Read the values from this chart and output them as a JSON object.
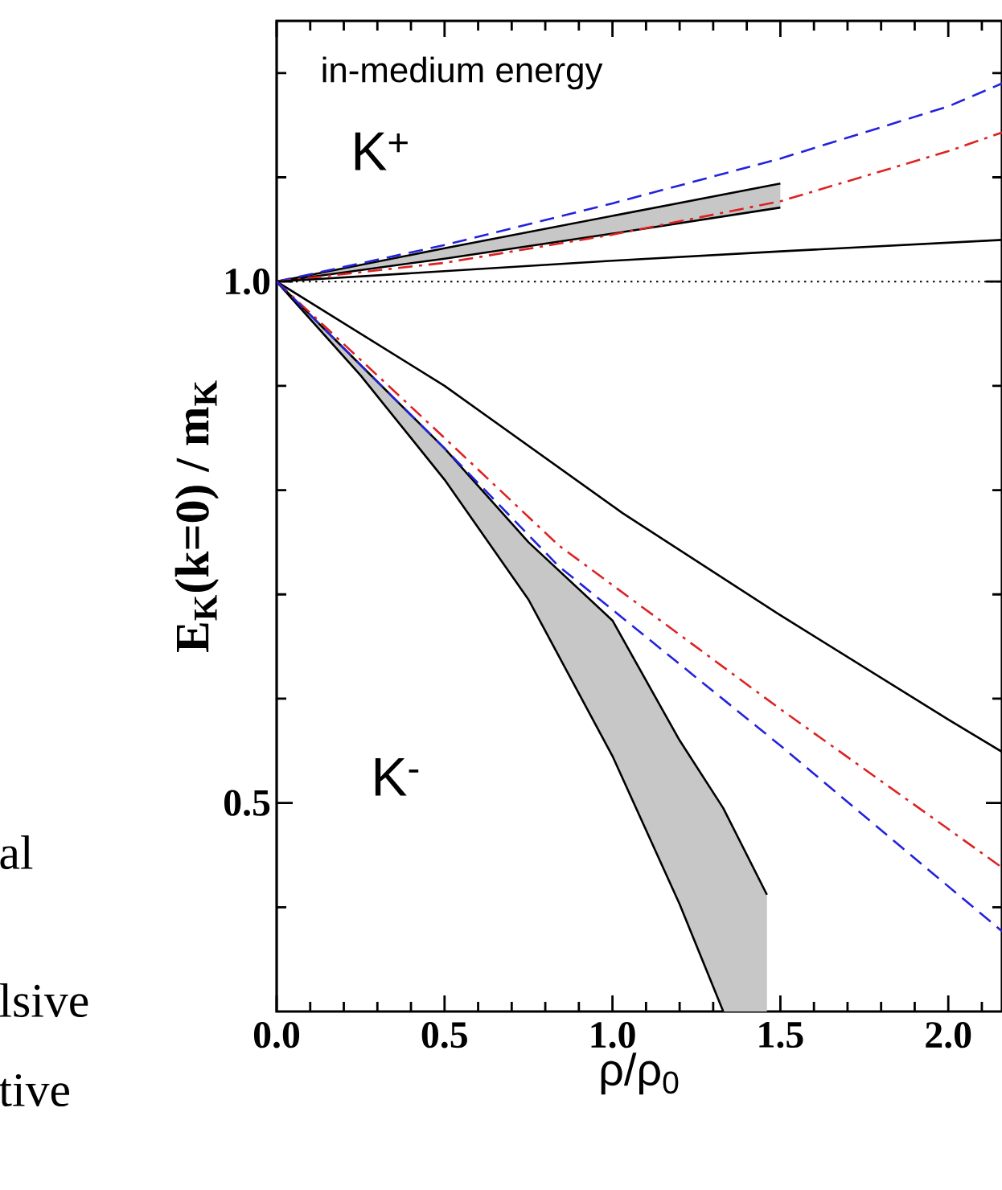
{
  "chart_data": {
    "type": "line",
    "xlabel": "ρ/ρ$_{0}$",
    "ylabel": "E$_{K}$(k=0) / m$_{K}$",
    "annotations": [
      "in-medium energy",
      "K$^{+}$",
      "K$^{-}$",
      "al",
      "lsive",
      "tive"
    ],
    "xlim": [
      0,
      2.16
    ],
    "ylim": [
      0.3,
      1.25
    ],
    "xticks": [
      {
        "value": 0.0,
        "label": "0.0"
      },
      {
        "value": 0.1,
        "label": null
      },
      {
        "value": 0.2,
        "label": null
      },
      {
        "value": 0.3,
        "label": null
      },
      {
        "value": 0.4,
        "label": null
      },
      {
        "value": 0.5,
        "label": "0.5"
      },
      {
        "value": 0.6,
        "label": null
      },
      {
        "value": 0.7,
        "label": null
      },
      {
        "value": 0.8,
        "label": null
      },
      {
        "value": 0.9,
        "label": null
      },
      {
        "value": 1.0,
        "label": "1.0"
      },
      {
        "value": 1.1,
        "label": null
      },
      {
        "value": 1.2,
        "label": null
      },
      {
        "value": 1.3,
        "label": null
      },
      {
        "value": 1.4,
        "label": null
      },
      {
        "value": 1.5,
        "label": "1.5"
      },
      {
        "value": 1.6,
        "label": null
      },
      {
        "value": 1.7,
        "label": null
      },
      {
        "value": 1.8,
        "label": null
      },
      {
        "value": 1.9,
        "label": null
      },
      {
        "value": 2.0,
        "label": "2.0"
      },
      {
        "value": 2.1,
        "label": null
      }
    ],
    "yticks": [
      {
        "value": 0.4,
        "label": null
      },
      0.5,
      {
        "value": 0.6,
        "label": null
      },
      {
        "value": 0.7,
        "label": null
      },
      {
        "value": 0.8,
        "label": null
      },
      {
        "value": 0.9,
        "label": null
      },
      {
        "value": 1.0,
        "label": "1.0"
      },
      {
        "value": 1.1,
        "label": null
      },
      {
        "value": 1.2,
        "label": null
      }
    ],
    "ref_lines": [
      {
        "axis": "y",
        "value": 1.0,
        "color": "#000000",
        "line_style": "dotted"
      }
    ],
    "series": [
      {
        "color": "#000000",
        "line_style": "solid",
        "x": [
          0,
          0.5,
          1.0,
          1.5
        ],
        "values": [
          1.0,
          1.032,
          1.063,
          1.094
        ],
        "lower": [
          1.0,
          1.022,
          1.046,
          1.071
        ],
        "upper": [
          1.0,
          1.032,
          1.063,
          1.094
        ]
      },
      {
        "color": "#000000",
        "line_style": "solid",
        "x": [
          0,
          0.5,
          1.0,
          1.5
        ],
        "values": [
          1.0,
          1.022,
          1.046,
          1.071
        ]
      },
      {
        "color": "#2222dd",
        "line_style": "dashed",
        "x": [
          0,
          0.5,
          1.0,
          1.5,
          2.0,
          2.16
        ],
        "values": [
          1.0,
          1.035,
          1.075,
          1.118,
          1.168,
          1.19
        ]
      },
      {
        "color": "#dd2222",
        "line_style": "dashdot",
        "x": [
          0,
          0.5,
          1.0,
          1.5,
          2.0,
          2.16
        ],
        "values": [
          1.0,
          1.018,
          1.045,
          1.077,
          1.125,
          1.143
        ]
      },
      {
        "color": "#000000",
        "line_style": "solid",
        "x": [
          0,
          0.5,
          1.0,
          1.5,
          2.16
        ],
        "values": [
          1.0,
          1.01,
          1.02,
          1.029,
          1.04
        ]
      },
      {
        "color": "#000000",
        "line_style": "solid",
        "x": [
          0,
          0.25,
          0.5,
          0.75,
          1.0,
          1.2,
          1.33,
          1.46
        ],
        "values": [
          1.0,
          0.92,
          0.84,
          0.75,
          0.675,
          0.56,
          0.495,
          0.412
        ],
        "lower": [
          1.0,
          0.91,
          0.81,
          0.695,
          0.545,
          0.403,
          0.3,
          0.3
        ],
        "upper": [
          1.0,
          0.92,
          0.84,
          0.75,
          0.675,
          0.56,
          0.495,
          0.412
        ]
      },
      {
        "color": "#000000",
        "line_style": "solid",
        "x": [
          0,
          0.25,
          0.5,
          0.75,
          1.0,
          1.2,
          1.33
        ],
        "values": [
          1.0,
          0.91,
          0.81,
          0.695,
          0.545,
          0.403,
          0.3
        ]
      },
      {
        "color": "#000000",
        "line_style": "solid",
        "x": [
          0,
          0.5,
          1.03,
          1.5,
          2.0,
          2.16
        ],
        "values": [
          1.0,
          0.9,
          0.778,
          0.68,
          0.58,
          0.549
        ]
      },
      {
        "color": "#dd2222",
        "line_style": "dashdot",
        "x": [
          0,
          0.5,
          0.84,
          1.5,
          2.0,
          2.16
        ],
        "values": [
          1.0,
          0.85,
          0.747,
          0.59,
          0.475,
          0.438
        ]
      },
      {
        "color": "#2222dd",
        "line_style": "dashed",
        "x": [
          0,
          0.5,
          0.84,
          1.5,
          2.0,
          2.16
        ],
        "values": [
          1.0,
          0.84,
          0.727,
          0.555,
          0.42,
          0.377
        ]
      }
    ]
  }
}
